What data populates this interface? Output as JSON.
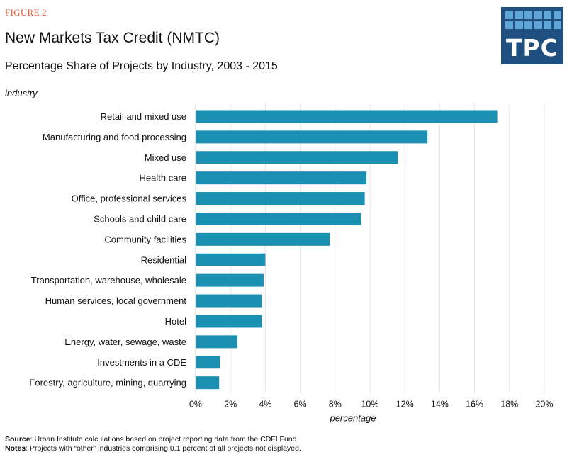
{
  "header": {
    "figure_label": "FIGURE 2",
    "title": "New Markets Tax Credit (NMTC)",
    "subtitle": "Percentage Share of Projects by Industry, 2003 - 2015"
  },
  "logo": {
    "text": "TPC",
    "background": "#1e4f7e",
    "tile_color": "#5fa5d6"
  },
  "chart_data": {
    "type": "bar",
    "orientation": "horizontal",
    "categories": [
      "Retail and mixed use",
      "Manufacturing and food processing",
      "Mixed use",
      "Health care",
      "Office, professional services",
      "Schools and child care",
      "Community facilities",
      "Residential",
      "Transportation, warehouse, wholesale",
      "Human services, local government",
      "Hotel",
      "Energy, water, sewage, waste",
      "Investments in a CDE",
      "Forestry, agriculture, mining, quarrying"
    ],
    "values": [
      17.3,
      13.3,
      11.6,
      9.8,
      9.7,
      9.5,
      7.7,
      4.0,
      3.9,
      3.8,
      3.8,
      2.4,
      1.4,
      1.35
    ],
    "xlim": [
      0,
      20
    ],
    "xticks": [
      "0%",
      "2%",
      "4%",
      "6%",
      "8%",
      "10%",
      "12%",
      "14%",
      "16%",
      "18%",
      "20%"
    ],
    "xlabel": "percentage",
    "ylabel": "industry",
    "grid": true,
    "bar_color": "#1b90b3"
  },
  "footer": {
    "source_label": "Source",
    "source_text": ": Urban Institute calculations based on project reporting data from the CDFI Fund",
    "notes_label": "Notes",
    "notes_text": ": Projects with “other” industries comprising 0.1 percent of all projects not displayed."
  }
}
